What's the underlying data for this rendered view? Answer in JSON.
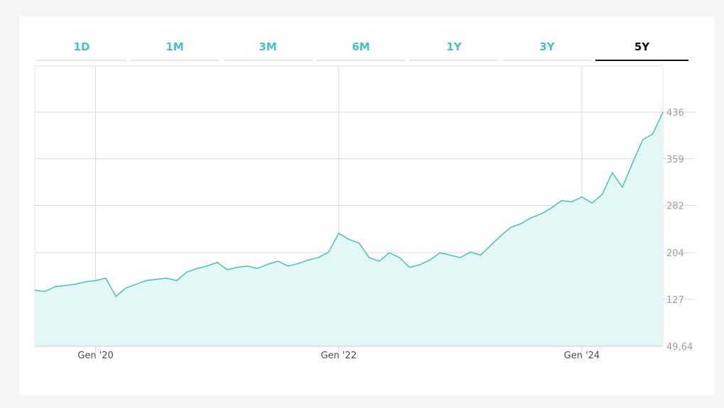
{
  "tabs": [
    {
      "label": "1D",
      "active": false
    },
    {
      "label": "1M",
      "active": false
    },
    {
      "label": "3M",
      "active": false
    },
    {
      "label": "6M",
      "active": false
    },
    {
      "label": "1Y",
      "active": false
    },
    {
      "label": "3Y",
      "active": false
    },
    {
      "label": "5Y",
      "active": true
    }
  ],
  "colors": {
    "line": "#3fbdb8",
    "fill": "#e3f7f6",
    "grid": "#d6d9dc",
    "tab_inactive": "#47c2c2",
    "tab_active": "#111111"
  },
  "chart_data": {
    "type": "area",
    "title": "",
    "xlabel": "",
    "ylabel": "",
    "ylim": [
      49.64,
      513
    ],
    "yticks": [
      "436",
      "359",
      "282",
      "204",
      "127",
      "49,64"
    ],
    "ytick_values": [
      436,
      359,
      282,
      204,
      127,
      49.64
    ],
    "xticks": [
      "Gen '20",
      "Gen '22",
      "Gen '24"
    ],
    "xtick_values": [
      "2020-01",
      "2022-01",
      "2024-01"
    ],
    "xlim": [
      "2019-07",
      "2024-09"
    ],
    "grid": true,
    "series": [
      {
        "x": [
          "2019-07",
          "2019-08",
          "2019-09",
          "2019-10",
          "2019-11",
          "2019-12",
          "2020-01",
          "2020-02",
          "2020-03",
          "2020-04",
          "2020-05",
          "2020-06",
          "2020-07",
          "2020-08",
          "2020-09",
          "2020-10",
          "2020-11",
          "2020-12",
          "2021-01",
          "2021-02",
          "2021-03",
          "2021-04",
          "2021-05",
          "2021-06",
          "2021-07",
          "2021-08",
          "2021-09",
          "2021-10",
          "2021-11",
          "2021-12",
          "2022-01",
          "2022-02",
          "2022-03",
          "2022-04",
          "2022-05",
          "2022-06",
          "2022-07",
          "2022-08",
          "2022-09",
          "2022-10",
          "2022-11",
          "2022-12",
          "2023-01",
          "2023-02",
          "2023-03",
          "2023-04",
          "2023-05",
          "2023-06",
          "2023-07",
          "2023-08",
          "2023-09",
          "2023-10",
          "2023-11",
          "2023-12",
          "2024-01",
          "2024-02",
          "2024-03",
          "2024-04",
          "2024-05",
          "2024-06",
          "2024-07",
          "2024-08",
          "2024-09"
        ],
        "values": [
          142,
          140,
          148,
          150,
          152,
          156,
          158,
          162,
          132,
          146,
          152,
          158,
          160,
          162,
          158,
          172,
          178,
          182,
          188,
          176,
          180,
          182,
          178,
          185,
          190,
          182,
          186,
          192,
          196,
          205,
          236,
          226,
          220,
          196,
          190,
          204,
          196,
          180,
          184,
          192,
          204,
          200,
          196,
          205,
          200,
          216,
          232,
          246,
          252,
          262,
          268,
          278,
          290,
          288,
          296,
          286,
          300,
          336,
          312,
          352,
          390,
          400,
          436
        ]
      }
    ]
  }
}
